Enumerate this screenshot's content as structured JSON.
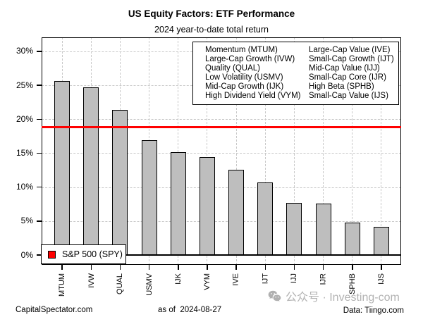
{
  "header": {
    "title": "US Equity Factors: ETF Performance",
    "subtitle": "2024 year-to-date total return"
  },
  "chart_data": {
    "type": "bar",
    "title": "US Equity Factors: ETF Performance",
    "subtitle": "2024 year-to-date total return",
    "categories": [
      "MTUM",
      "IVW",
      "QUAL",
      "USMV",
      "IJK",
      "VYM",
      "IVE",
      "IJT",
      "IJJ",
      "IJR",
      "SPHB",
      "IJS"
    ],
    "values": [
      25.6,
      24.7,
      21.4,
      16.9,
      15.1,
      14.4,
      12.6,
      10.7,
      7.7,
      7.6,
      4.8,
      4.1
    ],
    "value_unit": "%",
    "xlabel": "",
    "ylabel": "",
    "yticks": [
      0,
      5,
      10,
      15,
      20,
      25,
      30
    ],
    "ytick_labels": [
      "0%",
      "5%",
      "10%",
      "15%",
      "20%",
      "25%",
      "30%"
    ],
    "ylim": [
      -1.5,
      32
    ],
    "grid": "dashed, both directions",
    "bar_fill": "#bebebe",
    "bar_border": "#000000",
    "grid_color": "#c8c8c8",
    "reference_line": {
      "label": "S&P 500 (SPY)",
      "value": 18.8,
      "color": "#ff0000"
    },
    "legend_position": "top-right",
    "legend_columns": {
      "left": [
        "Momentum (MTUM)",
        "Large-Cap Growth (IVW)",
        "Quality (QUAL)",
        "Low Volatility (USMV)",
        "Mid-Cap Growth (IJK)",
        "High Dividend Yield (VYM)"
      ],
      "right": [
        "Large-Cap Value (IVE)",
        "Small-Cap Growth (IJT)",
        "Mid-Cap Value (IJJ)",
        "Small-Cap Core (IJR)",
        "High Beta (SPHB)",
        "Small-Cap Value (IJS)"
      ]
    }
  },
  "spy_legend": {
    "label": "S&P 500 (SPY)",
    "swatch_color": "#ff0000"
  },
  "footer": {
    "left": "CapitalSpectator.com",
    "center": "as of  2024-08-27",
    "right": "Data: Tiingo.com"
  },
  "watermark": {
    "icon": "wechat-icon",
    "text": "公众号 · Investing-com",
    "color": "#b3b3b3"
  }
}
